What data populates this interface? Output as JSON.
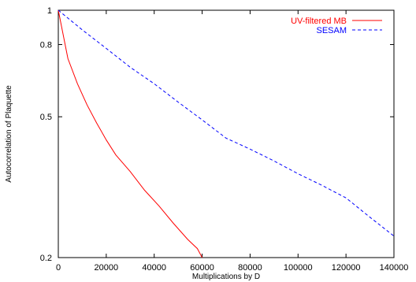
{
  "chart_data": {
    "type": "line",
    "title": "",
    "xlabel": "Multiplications by D",
    "ylabel": "Autocorrelation of Plaquette",
    "xlim": [
      0,
      140000
    ],
    "ylim": [
      0.2,
      1
    ],
    "y_scale": "log",
    "grid": false,
    "legend_position": "top-right",
    "x_ticks": [
      {
        "value": 0,
        "label": "0"
      },
      {
        "value": 20000,
        "label": "20000"
      },
      {
        "value": 40000,
        "label": "40000"
      },
      {
        "value": 60000,
        "label": "60000"
      },
      {
        "value": 80000,
        "label": "80000"
      },
      {
        "value": 100000,
        "label": "100000"
      },
      {
        "value": 120000,
        "label": "120000"
      },
      {
        "value": 140000,
        "label": "140000"
      }
    ],
    "y_ticks": [
      {
        "value": 0.2,
        "label": "0.2"
      },
      {
        "value": 0.5,
        "label": "0.5"
      },
      {
        "value": 0.8,
        "label": "0.8"
      },
      {
        "value": 1,
        "label": "1"
      }
    ],
    "series": [
      {
        "name": "UV-filtered MB",
        "color": "#ff0000",
        "style": "solid",
        "points": [
          [
            0,
            1.0
          ],
          [
            4000,
            0.73
          ],
          [
            8000,
            0.62
          ],
          [
            12000,
            0.54
          ],
          [
            16000,
            0.48
          ],
          [
            20000,
            0.43
          ],
          [
            24000,
            0.39
          ],
          [
            30000,
            0.35
          ],
          [
            36000,
            0.31
          ],
          [
            42000,
            0.28
          ],
          [
            48000,
            0.25
          ],
          [
            54000,
            0.225
          ],
          [
            58000,
            0.212
          ],
          [
            60000,
            0.2
          ]
        ]
      },
      {
        "name": "SESAM",
        "color": "#0000ff",
        "style": "dashed",
        "points": [
          [
            0,
            1.0
          ],
          [
            10000,
            0.88
          ],
          [
            20000,
            0.78
          ],
          [
            30000,
            0.69
          ],
          [
            40000,
            0.62
          ],
          [
            50000,
            0.55
          ],
          [
            60000,
            0.49
          ],
          [
            70000,
            0.435
          ],
          [
            80000,
            0.405
          ],
          [
            90000,
            0.375
          ],
          [
            100000,
            0.345
          ],
          [
            110000,
            0.32
          ],
          [
            120000,
            0.295
          ],
          [
            130000,
            0.26
          ],
          [
            140000,
            0.23
          ]
        ]
      }
    ]
  }
}
